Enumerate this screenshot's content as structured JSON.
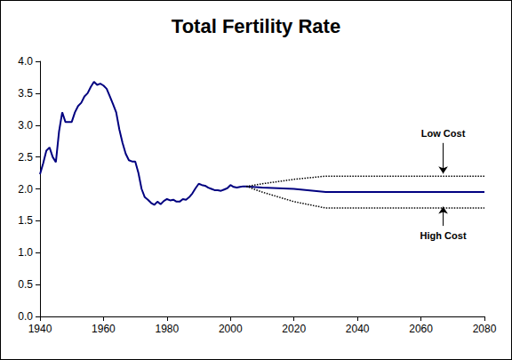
{
  "chart_data": {
    "type": "line",
    "title": "Total Fertility Rate",
    "x": [
      1940,
      1941,
      1942,
      1943,
      1944,
      1945,
      1946,
      1947,
      1948,
      1949,
      1950,
      1951,
      1952,
      1953,
      1954,
      1955,
      1956,
      1957,
      1958,
      1959,
      1960,
      1961,
      1962,
      1963,
      1964,
      1965,
      1966,
      1967,
      1968,
      1969,
      1970,
      1971,
      1972,
      1973,
      1974,
      1975,
      1976,
      1977,
      1978,
      1979,
      1980,
      1981,
      1982,
      1983,
      1984,
      1985,
      1986,
      1987,
      1988,
      1989,
      1990,
      1991,
      1992,
      1993,
      1994,
      1995,
      1996,
      1997,
      1998,
      1999,
      2000,
      2001,
      2002,
      2003,
      2004,
      2005,
      2010,
      2020,
      2030,
      2080
    ],
    "series": [
      {
        "color": "#000080",
        "line_style": "solid",
        "values": [
          2.23,
          2.4,
          2.6,
          2.65,
          2.5,
          2.42,
          2.9,
          3.2,
          3.05,
          3.05,
          3.05,
          3.2,
          3.3,
          3.35,
          3.45,
          3.5,
          3.6,
          3.68,
          3.63,
          3.65,
          3.62,
          3.57,
          3.45,
          3.33,
          3.2,
          2.93,
          2.72,
          2.55,
          2.45,
          2.43,
          2.43,
          2.25,
          2.0,
          1.87,
          1.83,
          1.78,
          1.75,
          1.8,
          1.76,
          1.81,
          1.84,
          1.82,
          1.83,
          1.8,
          1.8,
          1.84,
          1.83,
          1.87,
          1.93,
          2.01,
          2.08,
          2.06,
          2.05,
          2.02,
          2.0,
          1.98,
          1.98,
          1.97,
          1.99,
          2.01,
          2.06,
          2.03,
          2.02,
          2.03,
          2.04,
          2.04,
          null,
          null,
          null,
          null
        ]
      },
      {
        "color": "#000080",
        "line_style": "solid",
        "values": [
          null,
          null,
          null,
          null,
          null,
          null,
          null,
          null,
          null,
          null,
          null,
          null,
          null,
          null,
          null,
          null,
          null,
          null,
          null,
          null,
          null,
          null,
          null,
          null,
          null,
          null,
          null,
          null,
          null,
          null,
          null,
          null,
          null,
          null,
          null,
          null,
          null,
          null,
          null,
          null,
          null,
          null,
          null,
          null,
          null,
          null,
          null,
          null,
          null,
          null,
          null,
          null,
          null,
          null,
          null,
          null,
          null,
          null,
          null,
          null,
          null,
          null,
          null,
          null,
          null,
          2.04,
          2.02,
          2.0,
          1.95,
          1.95
        ]
      },
      {
        "color": "#000000",
        "line_style": "dotted",
        "values": [
          null,
          null,
          null,
          null,
          null,
          null,
          null,
          null,
          null,
          null,
          null,
          null,
          null,
          null,
          null,
          null,
          null,
          null,
          null,
          null,
          null,
          null,
          null,
          null,
          null,
          null,
          null,
          null,
          null,
          null,
          null,
          null,
          null,
          null,
          null,
          null,
          null,
          null,
          null,
          null,
          null,
          null,
          null,
          null,
          null,
          null,
          null,
          null,
          null,
          null,
          null,
          null,
          null,
          null,
          null,
          null,
          null,
          null,
          null,
          null,
          null,
          null,
          null,
          null,
          null,
          2.04,
          2.08,
          2.15,
          2.2,
          2.2
        ]
      },
      {
        "color": "#000000",
        "line_style": "dotted",
        "values": [
          null,
          null,
          null,
          null,
          null,
          null,
          null,
          null,
          null,
          null,
          null,
          null,
          null,
          null,
          null,
          null,
          null,
          null,
          null,
          null,
          null,
          null,
          null,
          null,
          null,
          null,
          null,
          null,
          null,
          null,
          null,
          null,
          null,
          null,
          null,
          null,
          null,
          null,
          null,
          null,
          null,
          null,
          null,
          null,
          null,
          null,
          null,
          null,
          null,
          null,
          null,
          null,
          null,
          null,
          null,
          null,
          null,
          null,
          null,
          null,
          null,
          null,
          null,
          null,
          null,
          2.04,
          1.95,
          1.8,
          1.7,
          1.7
        ]
      }
    ],
    "annotations": [
      {
        "text": "Low Cost",
        "xy": [
          2067,
          2.24
        ],
        "xytext": [
          2067,
          2.72
        ]
      },
      {
        "text": "High Cost",
        "xy": [
          2067,
          1.72
        ],
        "xytext": [
          2067,
          1.42
        ]
      }
    ],
    "xlim": [
      1940,
      2080
    ],
    "xticks": [
      1940,
      1960,
      1980,
      2000,
      2020,
      2040,
      2060,
      2080
    ],
    "ylim": [
      0,
      4
    ],
    "yticks": [
      {
        "value": 0,
        "label": "0.0"
      },
      0.5,
      {
        "value": 1,
        "label": "1.0"
      },
      1.5,
      {
        "value": 2,
        "label": "2.0"
      },
      2.5,
      {
        "value": 3,
        "label": "3.0"
      },
      3.5,
      {
        "value": 4,
        "label": "4.0"
      }
    ],
    "grid": false
  }
}
